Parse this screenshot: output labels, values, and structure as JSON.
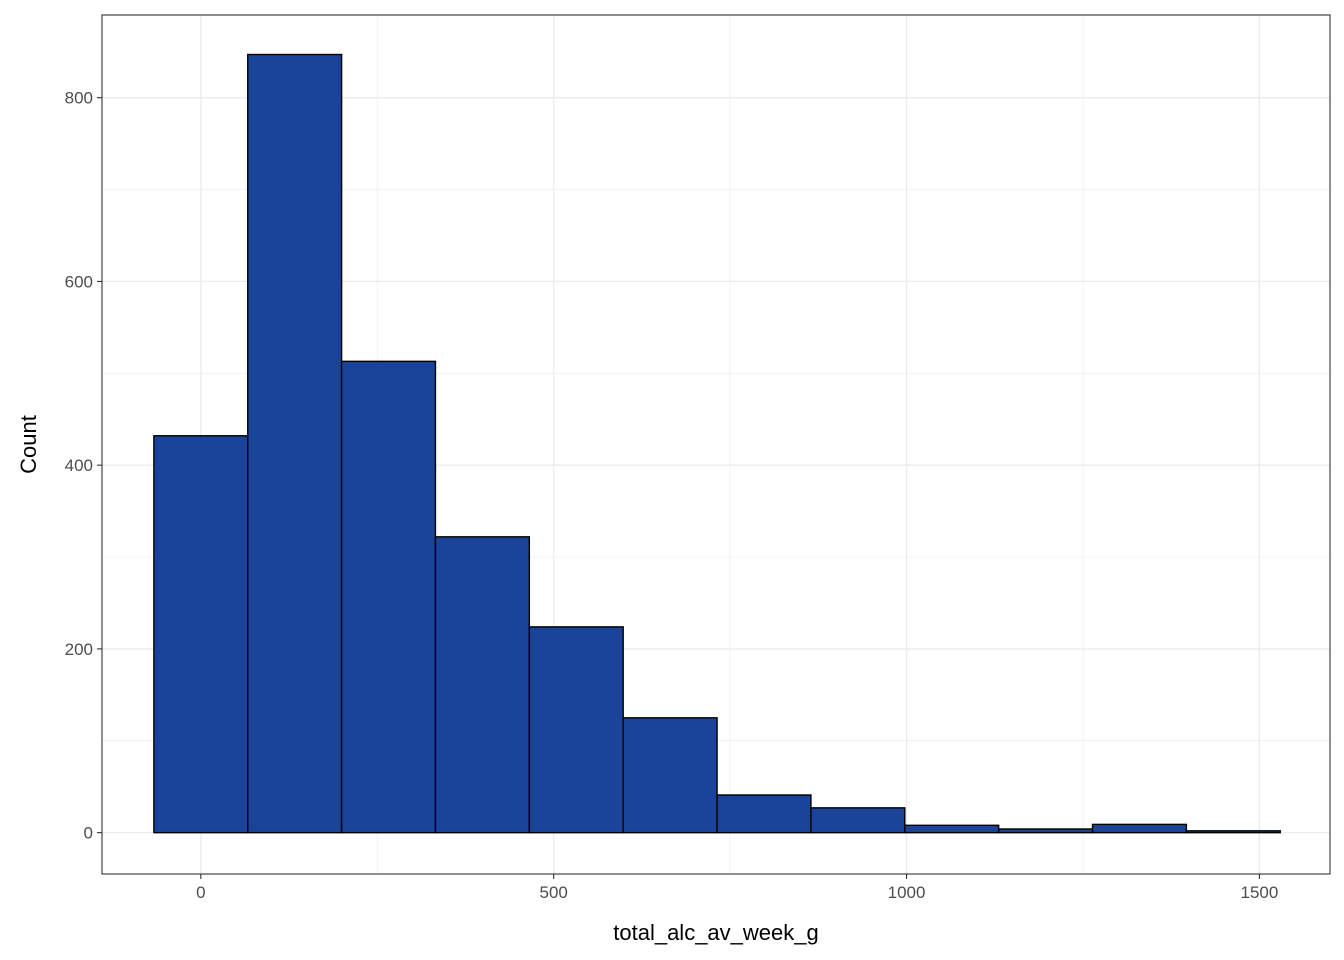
{
  "chart_data": {
    "type": "bar",
    "subtype": "histogram",
    "title": "",
    "xlabel": "total_alc_av_week_g",
    "ylabel": "Count",
    "xlim": [
      -140,
      1600
    ],
    "ylim": [
      -45,
      890
    ],
    "x_ticks": [
      0,
      500,
      1000,
      1500
    ],
    "y_ticks": [
      0,
      200,
      400,
      600,
      800
    ],
    "grid": true,
    "bar_fill": "#1a4499",
    "bar_stroke": "#000000",
    "bins": [
      {
        "x0": -66.5,
        "x1": 66.5,
        "count": 432
      },
      {
        "x0": 66.5,
        "x1": 199.5,
        "count": 847
      },
      {
        "x0": 199.5,
        "x1": 332.5,
        "count": 513
      },
      {
        "x0": 332.5,
        "x1": 465.5,
        "count": 322
      },
      {
        "x0": 465.5,
        "x1": 598.5,
        "count": 224
      },
      {
        "x0": 598.5,
        "x1": 731.5,
        "count": 125
      },
      {
        "x0": 731.5,
        "x1": 864.5,
        "count": 41
      },
      {
        "x0": 864.5,
        "x1": 997.5,
        "count": 27
      },
      {
        "x0": 997.5,
        "x1": 1130.5,
        "count": 8
      },
      {
        "x0": 1130.5,
        "x1": 1263.5,
        "count": 4
      },
      {
        "x0": 1263.5,
        "x1": 1396.5,
        "count": 9
      },
      {
        "x0": 1396.5,
        "x1": 1529.5,
        "count": 2
      }
    ]
  }
}
